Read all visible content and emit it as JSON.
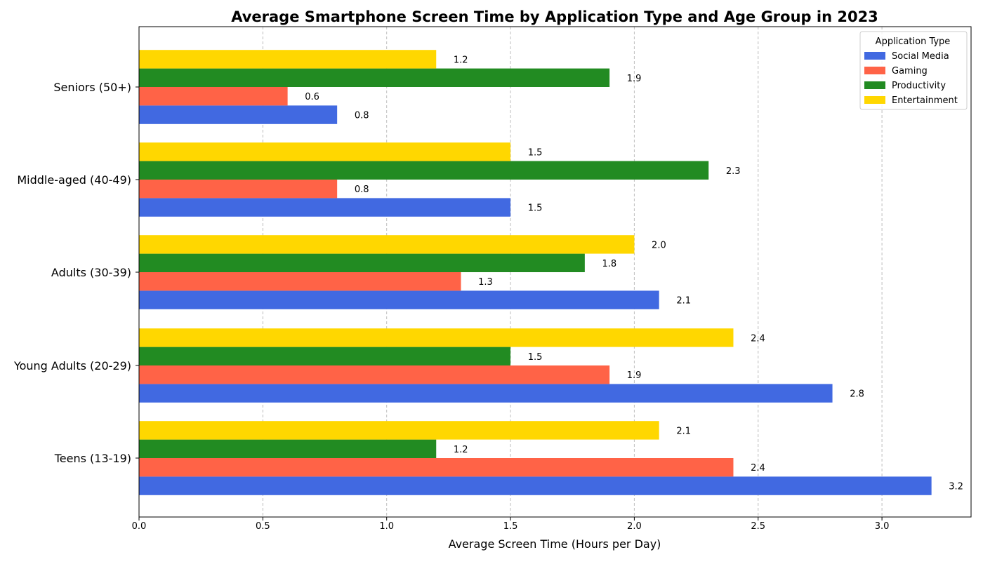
{
  "chart_data": {
    "type": "bar",
    "orientation": "horizontal",
    "title": "Average Smartphone Screen Time by Application Type and Age Group in 2023",
    "xlabel": "Average Screen Time (Hours per Day)",
    "ylabel": "",
    "xlim": [
      0,
      3.36
    ],
    "xticks": [
      "0.0",
      "0.5",
      "1.0",
      "1.5",
      "2.0",
      "2.5",
      "3.0"
    ],
    "grid": "vertical dashed",
    "categories": [
      "Teens (13-19)",
      "Young Adults (20-29)",
      "Adults (30-39)",
      "Middle-aged (40-49)",
      "Seniors (50+)"
    ],
    "legend": {
      "title": "Application Type",
      "placement": "top-right"
    },
    "series": [
      {
        "name": "Social Media",
        "color": "#4169E1",
        "values": [
          3.2,
          2.8,
          2.1,
          1.5,
          0.8
        ],
        "labels": [
          "3.2",
          "2.8",
          "2.1",
          "1.5",
          "0.8"
        ]
      },
      {
        "name": "Gaming",
        "color": "#FF6347",
        "values": [
          2.4,
          1.9,
          1.3,
          0.8,
          0.6
        ],
        "labels": [
          "2.4",
          "1.9",
          "1.3",
          "0.8",
          "0.6"
        ]
      },
      {
        "name": "Productivity",
        "color": "#228B22",
        "values": [
          1.2,
          1.5,
          1.8,
          2.3,
          1.9
        ],
        "labels": [
          "1.2",
          "1.5",
          "1.8",
          "2.3",
          "1.9"
        ]
      },
      {
        "name": "Entertainment",
        "color": "#FFD700",
        "values": [
          2.1,
          2.4,
          2.0,
          1.5,
          1.2
        ],
        "labels": [
          "2.1",
          "2.4",
          "2.0",
          "1.5",
          "1.2"
        ]
      }
    ]
  }
}
